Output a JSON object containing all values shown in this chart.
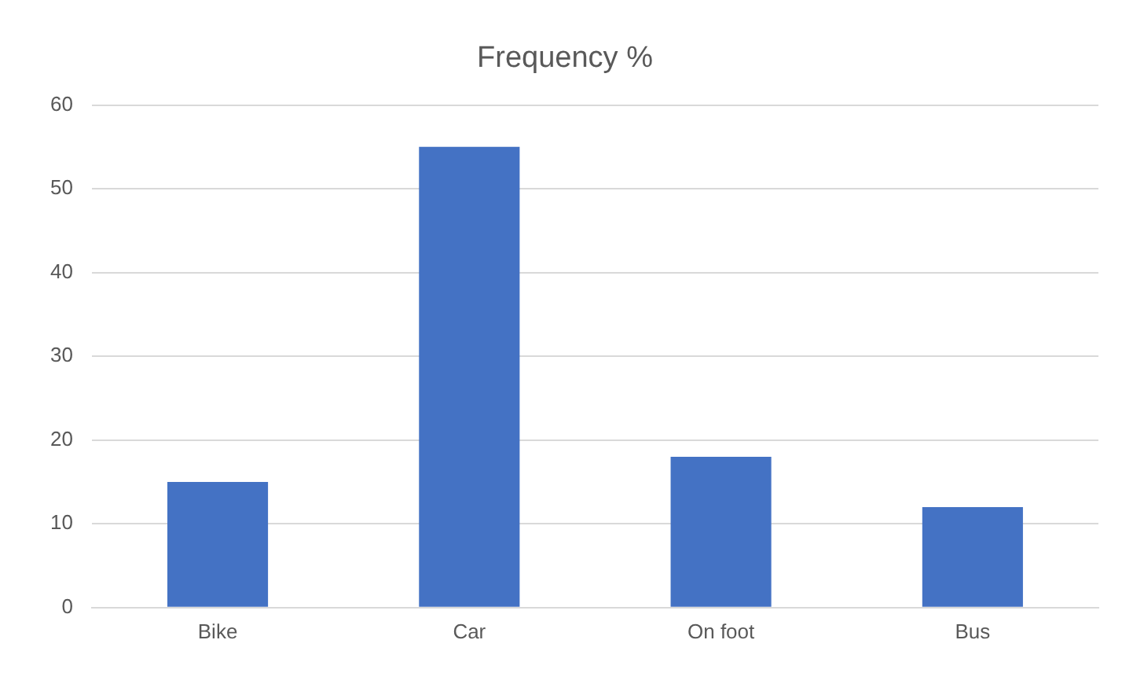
{
  "chart_data": {
    "type": "bar",
    "title": "Frequency %",
    "categories": [
      "Bike",
      "Car",
      "On foot",
      "Bus"
    ],
    "values": [
      15,
      55,
      18,
      12
    ],
    "color": "#4472c4",
    "ylim": [
      0,
      60
    ],
    "yticks": [
      0,
      10,
      20,
      30,
      40,
      50,
      60
    ],
    "grid": "y",
    "legend": false
  }
}
